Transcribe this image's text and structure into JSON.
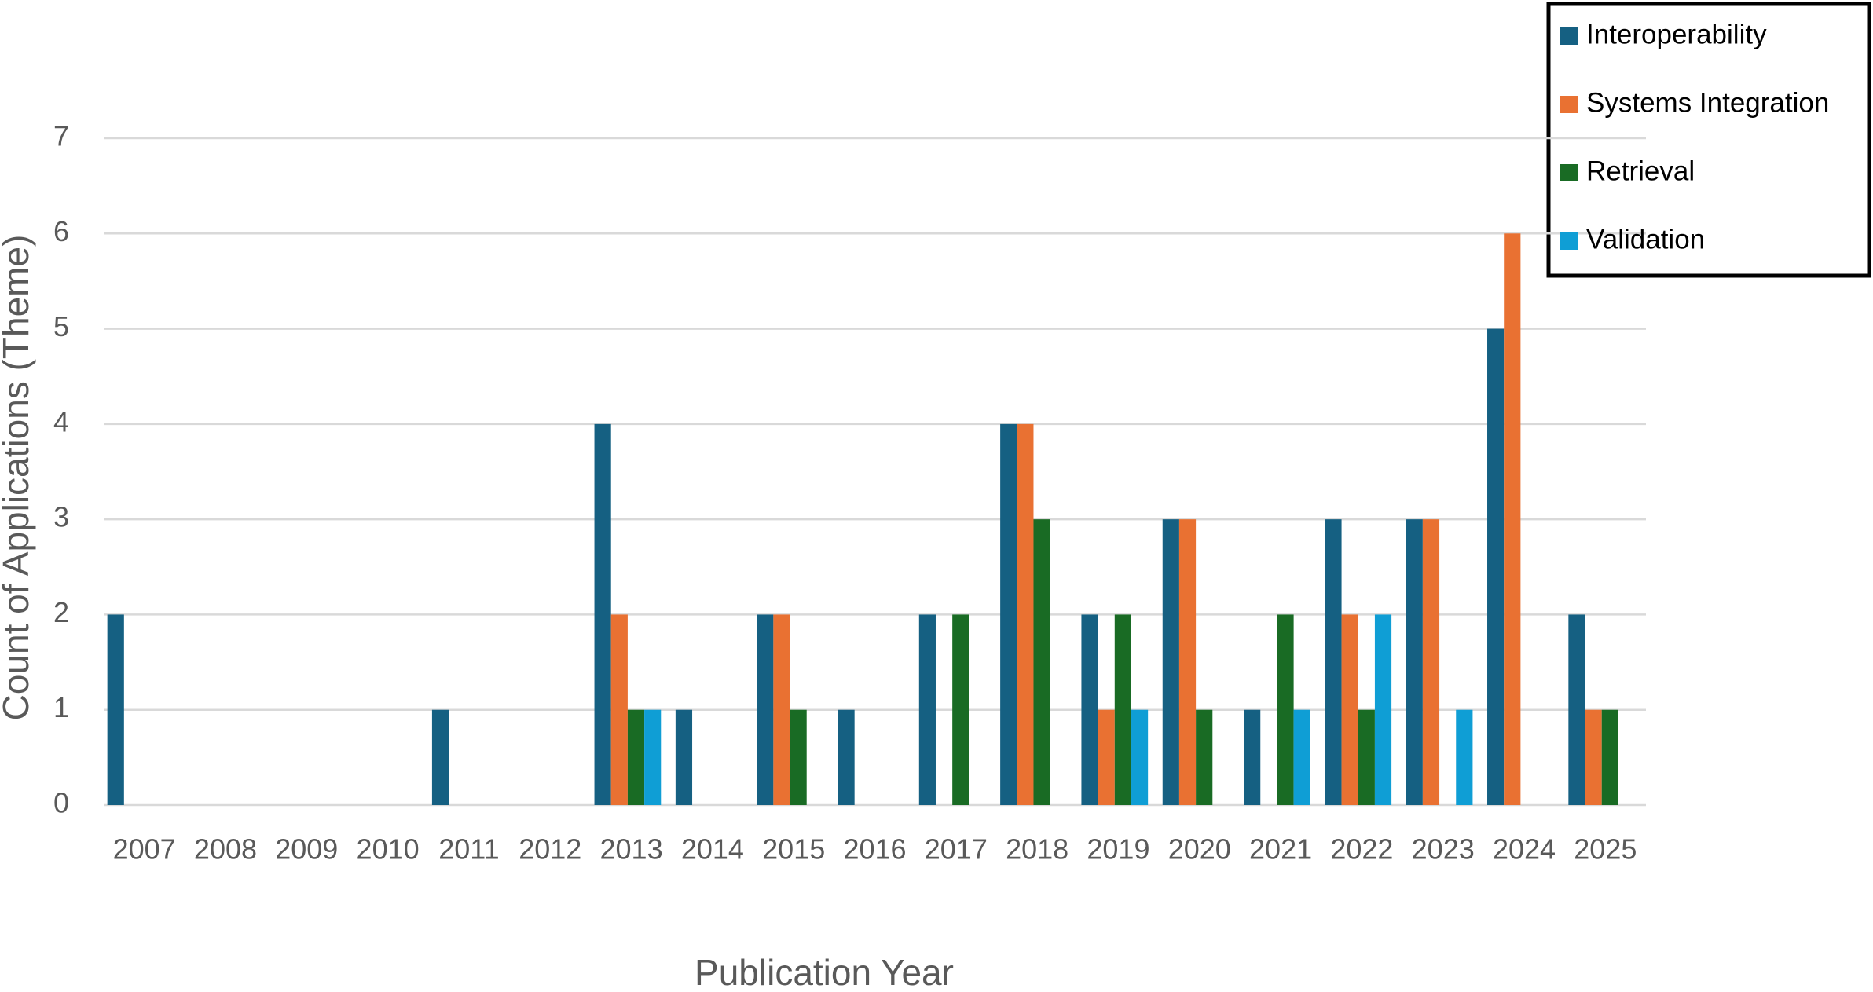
{
  "chart_data": {
    "type": "bar",
    "x_label": "Publication Year",
    "y_label": "Count of Applications (Theme)",
    "categories": [
      "2007",
      "2008",
      "2009",
      "2010",
      "2011",
      "2012",
      "2013",
      "2014",
      "2015",
      "2016",
      "2017",
      "2018",
      "2019",
      "2020",
      "2021",
      "2022",
      "2023",
      "2024",
      "2025"
    ],
    "series": [
      {
        "name": "Interoperability",
        "color": "#156082",
        "values": [
          2,
          0,
          0,
          0,
          1,
          0,
          4,
          1,
          2,
          1,
          2,
          4,
          2,
          3,
          1,
          3,
          3,
          5,
          2
        ]
      },
      {
        "name": "Systems Integration",
        "color": "#e97132",
        "values": [
          0,
          0,
          0,
          0,
          0,
          0,
          2,
          0,
          2,
          0,
          0,
          4,
          1,
          3,
          0,
          2,
          3,
          6,
          1
        ]
      },
      {
        "name": "Retrieval",
        "color": "#196b24",
        "values": [
          0,
          0,
          0,
          0,
          0,
          0,
          1,
          0,
          1,
          0,
          2,
          3,
          2,
          1,
          2,
          1,
          0,
          0,
          1
        ]
      },
      {
        "name": "Validation",
        "color": "#0f9ed5",
        "values": [
          0,
          0,
          0,
          0,
          0,
          0,
          1,
          0,
          0,
          0,
          0,
          0,
          1,
          0,
          1,
          2,
          1,
          0,
          0
        ]
      }
    ],
    "ylim": [
      0,
      7
    ],
    "yticks": [
      0,
      1,
      2,
      3,
      4,
      5,
      6,
      7
    ],
    "grid": true,
    "legend": "top-right"
  }
}
